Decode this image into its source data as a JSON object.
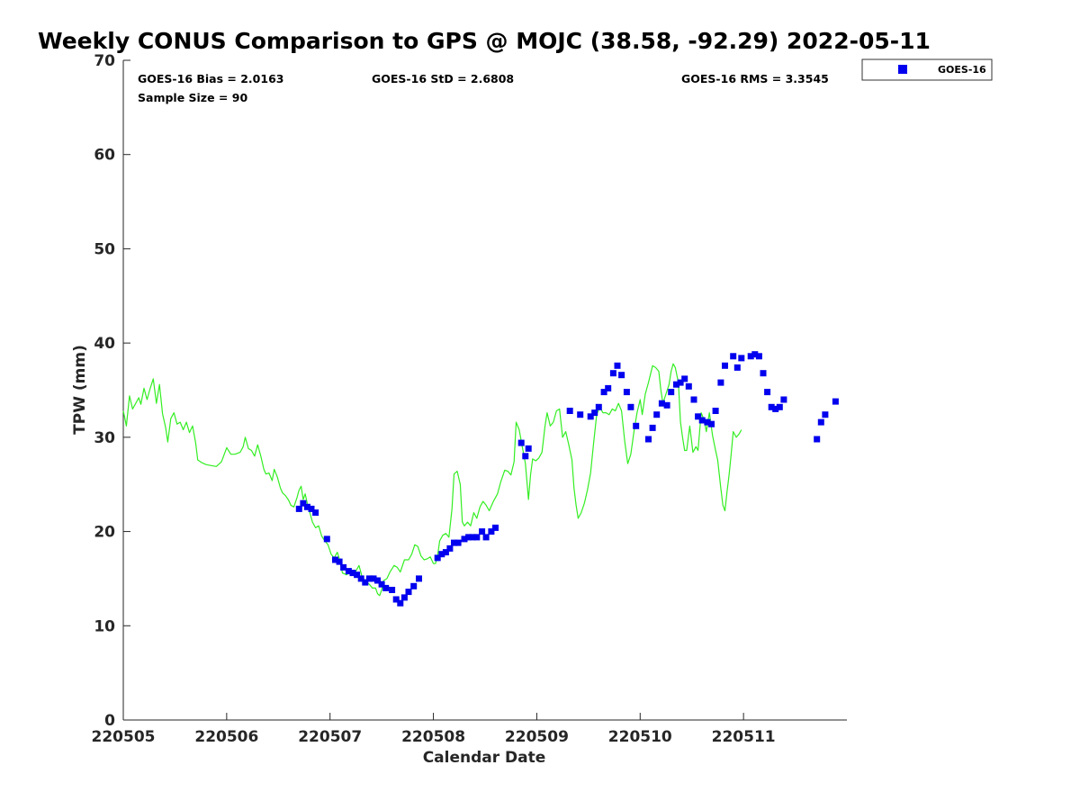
{
  "chart_data": {
    "type": "scatter",
    "title": "Weekly CONUS Comparison to GPS @ MOJC (38.58, -92.29) 2022-05-11",
    "xlabel": "Calendar Date",
    "ylabel": "TPW (mm)",
    "xlim": [
      0,
      7
    ],
    "ylim": [
      0,
      70
    ],
    "x_unit": "days since 220505 00Z",
    "y_ticks": [
      "0",
      "10",
      "20",
      "30",
      "40",
      "50",
      "60",
      "70"
    ],
    "x_ticks": [
      {
        "x": 0,
        "label": "220505"
      },
      {
        "x": 1,
        "label": "220506"
      },
      {
        "x": 2,
        "label": "220507"
      },
      {
        "x": 3,
        "label": "220508"
      },
      {
        "x": 4,
        "label": "220509"
      },
      {
        "x": 5,
        "label": "220510"
      },
      {
        "x": 6,
        "label": "220511"
      }
    ],
    "stats": {
      "bias": "GOES-16 Bias = 2.0163",
      "std": "GOES-16 StD = 2.6808",
      "rms": "GOES-16 RMS = 3.3545",
      "sample": "Sample Size = 90"
    },
    "legend": [
      {
        "name": "GOES-16",
        "marker": "square",
        "color": "#0000ee"
      }
    ],
    "series": [
      {
        "name": "GPS",
        "kind": "line",
        "color": "#33ee22",
        "points": [
          [
            0.0,
            32.8
          ],
          [
            0.03,
            31.2
          ],
          [
            0.06,
            34.4
          ],
          [
            0.09,
            33.0
          ],
          [
            0.12,
            33.6
          ],
          [
            0.15,
            34.2
          ],
          [
            0.17,
            33.5
          ],
          [
            0.2,
            35.2
          ],
          [
            0.23,
            34.0
          ],
          [
            0.26,
            35.2
          ],
          [
            0.29,
            36.2
          ],
          [
            0.32,
            33.6
          ],
          [
            0.35,
            35.6
          ],
          [
            0.38,
            32.5
          ],
          [
            0.41,
            31.0
          ],
          [
            0.43,
            29.5
          ],
          [
            0.46,
            32.0
          ],
          [
            0.49,
            32.6
          ],
          [
            0.52,
            31.4
          ],
          [
            0.55,
            31.6
          ],
          [
            0.58,
            30.8
          ],
          [
            0.61,
            31.6
          ],
          [
            0.64,
            30.5
          ],
          [
            0.67,
            31.2
          ],
          [
            0.7,
            29.4
          ],
          [
            0.72,
            27.6
          ],
          [
            0.76,
            27.3
          ],
          [
            0.8,
            27.1
          ],
          [
            0.85,
            27.0
          ],
          [
            0.9,
            26.9
          ],
          [
            0.95,
            27.4
          ],
          [
            1.0,
            28.9
          ],
          [
            1.04,
            28.2
          ],
          [
            1.08,
            28.2
          ],
          [
            1.13,
            28.4
          ],
          [
            1.16,
            29.0
          ],
          [
            1.18,
            30.0
          ],
          [
            1.21,
            28.8
          ],
          [
            1.24,
            28.6
          ],
          [
            1.27,
            28.0
          ],
          [
            1.3,
            29.2
          ],
          [
            1.33,
            28.0
          ],
          [
            1.36,
            26.6
          ],
          [
            1.38,
            26.1
          ],
          [
            1.41,
            26.2
          ],
          [
            1.44,
            25.4
          ],
          [
            1.46,
            26.6
          ],
          [
            1.49,
            25.8
          ],
          [
            1.52,
            24.6
          ],
          [
            1.54,
            24.1
          ],
          [
            1.57,
            23.8
          ],
          [
            1.6,
            23.3
          ],
          [
            1.62,
            22.8
          ],
          [
            1.65,
            22.6
          ],
          [
            1.68,
            23.6
          ],
          [
            1.7,
            24.4
          ],
          [
            1.72,
            24.8
          ],
          [
            1.74,
            23.4
          ],
          [
            1.76,
            24.0
          ],
          [
            1.78,
            23.0
          ],
          [
            1.8,
            22.2
          ],
          [
            1.83,
            21.0
          ],
          [
            1.86,
            20.4
          ],
          [
            1.89,
            20.6
          ],
          [
            1.92,
            19.5
          ],
          [
            1.95,
            19.0
          ],
          [
            1.98,
            18.6
          ],
          [
            2.01,
            17.6
          ],
          [
            2.04,
            17.2
          ],
          [
            2.07,
            17.8
          ],
          [
            2.09,
            17.1
          ],
          [
            2.12,
            15.6
          ],
          [
            2.16,
            15.4
          ],
          [
            2.2,
            15.8
          ],
          [
            2.24,
            15.6
          ],
          [
            2.28,
            16.4
          ],
          [
            2.31,
            15.2
          ],
          [
            2.35,
            14.6
          ],
          [
            2.38,
            14.4
          ],
          [
            2.41,
            14.0
          ],
          [
            2.44,
            14.0
          ],
          [
            2.46,
            13.4
          ],
          [
            2.48,
            13.2
          ],
          [
            2.5,
            13.8
          ],
          [
            2.52,
            14.8
          ],
          [
            2.55,
            15.0
          ],
          [
            2.58,
            15.7
          ],
          [
            2.62,
            16.4
          ],
          [
            2.65,
            16.2
          ],
          [
            2.68,
            15.7
          ],
          [
            2.72,
            17.0
          ],
          [
            2.76,
            17.0
          ],
          [
            2.79,
            17.6
          ],
          [
            2.82,
            18.6
          ],
          [
            2.85,
            18.4
          ],
          [
            2.88,
            17.4
          ],
          [
            2.91,
            17.0
          ],
          [
            2.94,
            17.1
          ],
          [
            2.97,
            17.3
          ],
          [
            3.0,
            16.6
          ],
          [
            3.02,
            16.6
          ],
          [
            3.04,
            17.4
          ],
          [
            3.06,
            19.0
          ],
          [
            3.09,
            19.6
          ],
          [
            3.12,
            19.8
          ],
          [
            3.15,
            19.4
          ],
          [
            3.18,
            22.4
          ],
          [
            3.2,
            26.1
          ],
          [
            3.23,
            26.4
          ],
          [
            3.26,
            25.0
          ],
          [
            3.28,
            21.0
          ],
          [
            3.3,
            20.6
          ],
          [
            3.33,
            21.0
          ],
          [
            3.36,
            20.6
          ],
          [
            3.39,
            22.0
          ],
          [
            3.42,
            21.4
          ],
          [
            3.45,
            22.6
          ],
          [
            3.48,
            23.2
          ],
          [
            3.51,
            22.8
          ],
          [
            3.54,
            22.2
          ],
          [
            3.58,
            23.2
          ],
          [
            3.62,
            24.0
          ],
          [
            3.65,
            25.2
          ],
          [
            3.69,
            26.5
          ],
          [
            3.72,
            26.4
          ],
          [
            3.75,
            26.0
          ],
          [
            3.78,
            27.4
          ],
          [
            3.8,
            31.6
          ],
          [
            3.83,
            30.8
          ],
          [
            3.86,
            29.0
          ],
          [
            3.89,
            27.2
          ],
          [
            3.92,
            23.4
          ],
          [
            3.94,
            26.0
          ],
          [
            3.96,
            27.7
          ],
          [
            3.99,
            27.5
          ],
          [
            4.02,
            27.8
          ],
          [
            4.05,
            28.4
          ],
          [
            4.08,
            31.2
          ],
          [
            4.1,
            32.6
          ],
          [
            4.13,
            31.2
          ],
          [
            4.16,
            31.6
          ],
          [
            4.19,
            32.8
          ],
          [
            4.22,
            33.0
          ],
          [
            4.25,
            30.0
          ],
          [
            4.28,
            30.6
          ],
          [
            4.31,
            29.2
          ],
          [
            4.34,
            27.6
          ],
          [
            4.36,
            24.6
          ],
          [
            4.38,
            22.8
          ],
          [
            4.4,
            21.4
          ],
          [
            4.43,
            22.0
          ],
          [
            4.46,
            23.0
          ],
          [
            4.49,
            24.4
          ],
          [
            4.52,
            26.2
          ],
          [
            4.55,
            29.4
          ],
          [
            4.58,
            32.4
          ],
          [
            4.61,
            33.2
          ],
          [
            4.64,
            32.6
          ],
          [
            4.67,
            32.6
          ],
          [
            4.7,
            32.4
          ],
          [
            4.73,
            33.0
          ],
          [
            4.76,
            32.8
          ],
          [
            4.79,
            33.6
          ],
          [
            4.82,
            32.8
          ],
          [
            4.85,
            29.6
          ],
          [
            4.88,
            27.2
          ],
          [
            4.91,
            28.2
          ],
          [
            4.94,
            30.6
          ],
          [
            4.97,
            32.6
          ],
          [
            5.0,
            34.0
          ],
          [
            5.02,
            32.4
          ],
          [
            5.05,
            34.6
          ],
          [
            5.08,
            35.8
          ],
          [
            5.12,
            37.6
          ],
          [
            5.15,
            37.4
          ],
          [
            5.18,
            37.0
          ],
          [
            5.2,
            35.0
          ],
          [
            5.22,
            33.6
          ],
          [
            5.25,
            34.6
          ],
          [
            5.28,
            35.6
          ],
          [
            5.3,
            37.0
          ],
          [
            5.32,
            37.8
          ],
          [
            5.34,
            37.4
          ],
          [
            5.37,
            35.8
          ],
          [
            5.39,
            31.6
          ],
          [
            5.41,
            30.0
          ],
          [
            5.43,
            28.6
          ],
          [
            5.45,
            28.6
          ],
          [
            5.48,
            31.2
          ],
          [
            5.51,
            28.4
          ],
          [
            5.54,
            29.0
          ],
          [
            5.56,
            28.6
          ],
          [
            5.59,
            32.6
          ],
          [
            5.62,
            31.8
          ],
          [
            5.64,
            30.6
          ],
          [
            5.67,
            32.6
          ],
          [
            5.7,
            30.2
          ],
          [
            5.73,
            28.6
          ],
          [
            5.75,
            27.6
          ],
          [
            5.78,
            24.6
          ],
          [
            5.8,
            22.8
          ],
          [
            5.82,
            22.2
          ],
          [
            5.84,
            24.2
          ],
          [
            5.86,
            26.0
          ],
          [
            5.88,
            28.2
          ],
          [
            5.9,
            30.6
          ],
          [
            5.93,
            30.0
          ],
          [
            5.96,
            30.4
          ],
          [
            5.98,
            30.8
          ]
        ]
      },
      {
        "name": "GOES-16",
        "kind": "marker",
        "color": "#0000ee",
        "points": [
          [
            1.7,
            22.4
          ],
          [
            1.74,
            23.0
          ],
          [
            1.78,
            22.6
          ],
          [
            1.82,
            22.4
          ],
          [
            1.86,
            22.0
          ],
          [
            1.97,
            19.2
          ],
          [
            2.05,
            17.0
          ],
          [
            2.09,
            16.8
          ],
          [
            2.13,
            16.2
          ],
          [
            2.18,
            15.8
          ],
          [
            2.22,
            15.6
          ],
          [
            2.26,
            15.4
          ],
          [
            2.3,
            15.0
          ],
          [
            2.34,
            14.6
          ],
          [
            2.38,
            15.0
          ],
          [
            2.42,
            15.0
          ],
          [
            2.46,
            14.8
          ],
          [
            2.5,
            14.4
          ],
          [
            2.54,
            14.0
          ],
          [
            2.6,
            13.8
          ],
          [
            2.64,
            12.8
          ],
          [
            2.68,
            12.4
          ],
          [
            2.72,
            13.0
          ],
          [
            2.76,
            13.6
          ],
          [
            2.81,
            14.2
          ],
          [
            2.86,
            15.0
          ],
          [
            3.04,
            17.2
          ],
          [
            3.08,
            17.6
          ],
          [
            3.12,
            17.8
          ],
          [
            3.16,
            18.2
          ],
          [
            3.2,
            18.8
          ],
          [
            3.24,
            18.8
          ],
          [
            3.3,
            19.2
          ],
          [
            3.34,
            19.4
          ],
          [
            3.38,
            19.4
          ],
          [
            3.42,
            19.4
          ],
          [
            3.47,
            20.0
          ],
          [
            3.51,
            19.4
          ],
          [
            3.56,
            20.0
          ],
          [
            3.6,
            20.4
          ],
          [
            3.85,
            29.4
          ],
          [
            3.89,
            28.0
          ],
          [
            3.92,
            28.8
          ],
          [
            4.32,
            32.8
          ],
          [
            4.42,
            32.4
          ],
          [
            4.52,
            32.2
          ],
          [
            4.56,
            32.6
          ],
          [
            4.6,
            33.2
          ],
          [
            4.65,
            34.8
          ],
          [
            4.69,
            35.2
          ],
          [
            4.74,
            36.8
          ],
          [
            4.78,
            37.6
          ],
          [
            4.82,
            36.6
          ],
          [
            4.87,
            34.8
          ],
          [
            4.91,
            33.2
          ],
          [
            4.96,
            31.2
          ],
          [
            5.08,
            29.8
          ],
          [
            5.12,
            31.0
          ],
          [
            5.16,
            32.4
          ],
          [
            5.21,
            33.6
          ],
          [
            5.26,
            33.4
          ],
          [
            5.3,
            34.8
          ],
          [
            5.35,
            35.6
          ],
          [
            5.39,
            35.8
          ],
          [
            5.43,
            36.2
          ],
          [
            5.47,
            35.4
          ],
          [
            5.52,
            34.0
          ],
          [
            5.56,
            32.2
          ],
          [
            5.6,
            31.8
          ],
          [
            5.65,
            31.6
          ],
          [
            5.69,
            31.4
          ],
          [
            5.73,
            32.8
          ],
          [
            5.78,
            35.8
          ],
          [
            5.82,
            37.6
          ],
          [
            5.9,
            38.6
          ],
          [
            5.94,
            37.4
          ],
          [
            5.98,
            38.4
          ],
          [
            6.07,
            38.6
          ],
          [
            6.11,
            38.8
          ],
          [
            6.15,
            38.6
          ],
          [
            6.19,
            36.8
          ],
          [
            6.23,
            34.8
          ],
          [
            6.27,
            33.2
          ],
          [
            6.31,
            33.0
          ],
          [
            6.35,
            33.2
          ],
          [
            6.39,
            34.0
          ],
          [
            6.71,
            29.8
          ],
          [
            6.75,
            31.6
          ],
          [
            6.79,
            32.4
          ],
          [
            6.89,
            33.8
          ]
        ]
      }
    ]
  }
}
